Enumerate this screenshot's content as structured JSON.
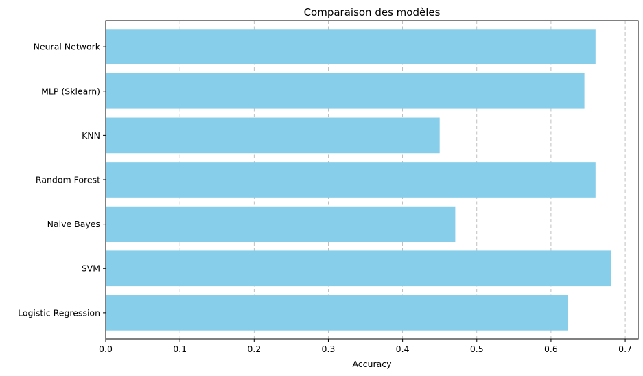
{
  "chart_data": {
    "type": "bar",
    "orientation": "horizontal",
    "title": "Comparaison des modèles",
    "xlabel": "Accuracy",
    "ylabel": "",
    "xlim": [
      0,
      0.7175
    ],
    "xticks": [
      0.0,
      0.1,
      0.2,
      0.3,
      0.4,
      0.5,
      0.6,
      0.7
    ],
    "xtick_labels": [
      "0.0",
      "0.1",
      "0.2",
      "0.3",
      "0.4",
      "0.5",
      "0.6",
      "0.7"
    ],
    "grid": "x-axis, dashed",
    "legend": "none",
    "bar_color": "#87CEEB",
    "categories": [
      "Logistic Regression",
      "SVM",
      "Naive Bayes",
      "Random Forest",
      "KNN",
      "MLP (Sklearn)",
      "Neural Network"
    ],
    "values": [
      0.623,
      0.681,
      0.471,
      0.66,
      0.45,
      0.645,
      0.66
    ]
  }
}
